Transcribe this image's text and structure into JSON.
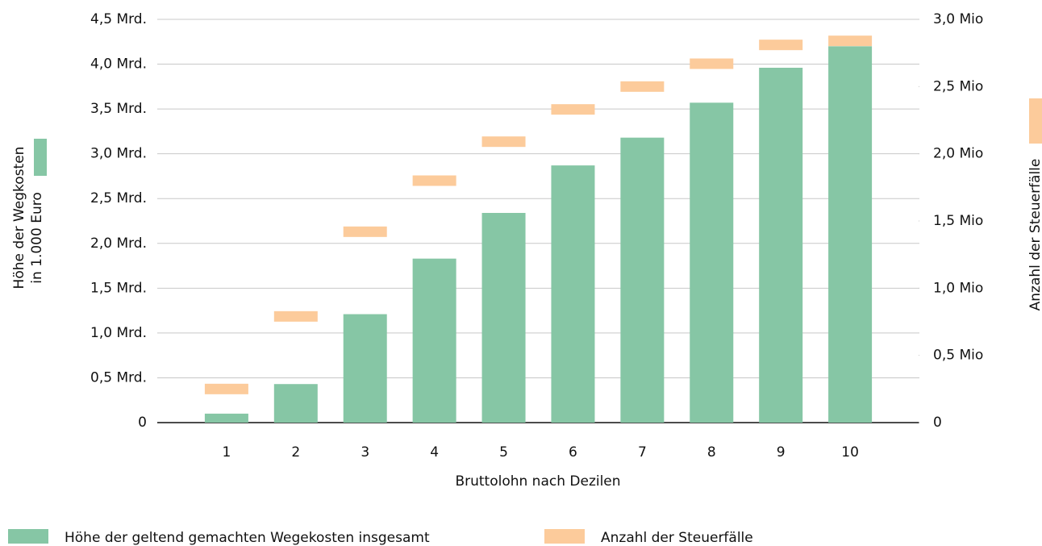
{
  "chart_data": {
    "type": "bar",
    "x_label": "Bruttolohn nach Dezilen",
    "y_label": [
      "Höhe der Wegkosten",
      "in 1.000 Euro"
    ],
    "y2_label": "Anzahl der Steuerfälle",
    "categories": [
      "1",
      "2",
      "3",
      "4",
      "5",
      "6",
      "7",
      "8",
      "9",
      "10"
    ],
    "series": [
      {
        "name": "Höhe der geltend gemachten Wegekosten insgesamt",
        "type": "bar",
        "color": "#86c6a5",
        "values": [
          0.1,
          0.43,
          1.21,
          1.83,
          2.34,
          2.87,
          3.18,
          3.57,
          3.96,
          4.2
        ]
      },
      {
        "name": "Anzahl der Steuerfälle",
        "type": "marker",
        "axis": "y2",
        "color": "#fccb9b",
        "values": [
          0.25,
          0.79,
          1.42,
          1.8,
          2.09,
          2.33,
          2.5,
          2.67,
          2.81,
          2.84
        ]
      }
    ],
    "ylim": [
      0,
      4.5
    ],
    "yticks": [
      0,
      {
        "value": 0.5,
        "label": "0,5 Mrd."
      },
      {
        "value": 1,
        "label": "1,0 Mrd."
      },
      {
        "value": 1.5,
        "label": "1,5 Mrd."
      },
      {
        "value": 2,
        "label": "2,0 Mrd."
      },
      {
        "value": 2.5,
        "label": "2,5 Mrd."
      },
      {
        "value": 3,
        "label": "3,0 Mrd."
      },
      {
        "value": 3.5,
        "label": "3,5 Mrd."
      },
      {
        "value": 4,
        "label": "4,0 Mrd."
      },
      {
        "value": 4.5,
        "label": "4,5 Mrd."
      }
    ],
    "y2lim": [
      0,
      3
    ],
    "y2ticks": [
      0,
      {
        "value": 0.5,
        "label": "0,5 Mio"
      },
      {
        "value": 1,
        "label": "1,0 Mio"
      },
      {
        "value": 1.5,
        "label": "1,5 Mio"
      },
      {
        "value": 2,
        "label": "2,0 Mio"
      },
      {
        "value": 2.5,
        "label": "2,5 Mio"
      },
      {
        "value": 3,
        "label": "3,0 Mio"
      }
    ],
    "grid": true,
    "legend": "bottom"
  }
}
